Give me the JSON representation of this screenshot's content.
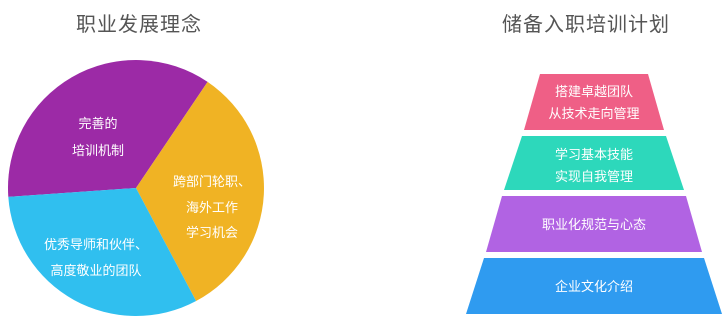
{
  "philosophy": {
    "title": "职业发展理念",
    "segments": [
      {
        "lines": [
          "完善的",
          "培训机制"
        ],
        "color": "#9c2aa6"
      },
      {
        "lines": [
          "跨部门轮职、",
          "海外工作",
          "学习机会"
        ],
        "color": "#f0b324"
      },
      {
        "lines": [
          "优秀导师和伙伴、",
          "高度敬业的团队"
        ],
        "color": "#30bfef"
      }
    ]
  },
  "onboarding_plan": {
    "title": "储备入职培训计划",
    "levels": [
      {
        "lines": [
          "搭建卓越团队",
          "从技术走向管理"
        ],
        "color": "#ef5f86"
      },
      {
        "lines": [
          "学习基本技能",
          "实现自我管理"
        ],
        "color": "#2dd8bb"
      },
      {
        "lines": [
          "职业化规范与心态"
        ],
        "color": "#b163e3"
      },
      {
        "lines": [
          "企业文化介绍"
        ],
        "color": "#2f9bf0"
      }
    ]
  }
}
